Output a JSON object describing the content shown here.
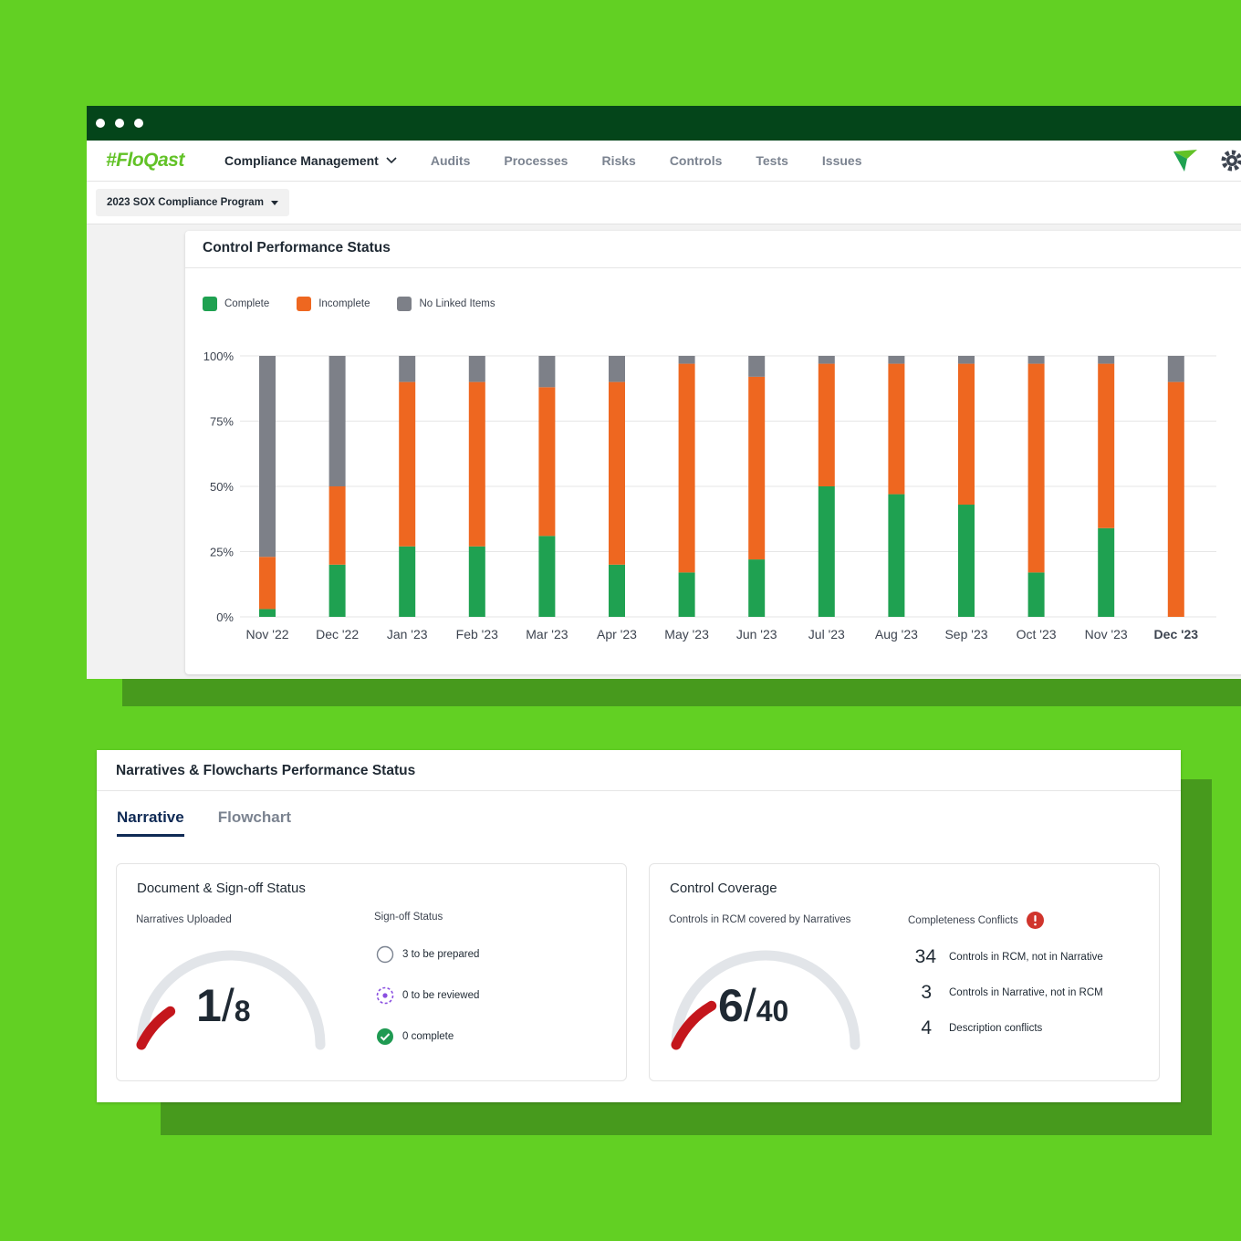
{
  "app": {
    "brand": "#FloQast",
    "nav": [
      {
        "label": "Compliance Management",
        "active": true
      },
      {
        "label": "Audits"
      },
      {
        "label": "Processes"
      },
      {
        "label": "Risks"
      },
      {
        "label": "Controls"
      },
      {
        "label": "Tests"
      },
      {
        "label": "Issues"
      }
    ],
    "program_selector": "2023 SOX Compliance Program",
    "icons": [
      "flag-icon",
      "gear-icon",
      "chevron-down-icon",
      "caret-down-icon"
    ]
  },
  "performance_panel": {
    "title": "Control Performance Status"
  },
  "chart_data": {
    "type": "bar",
    "stacked": true,
    "categories": [
      "Nov '22",
      "Dec '22",
      "Jan '23",
      "Feb '23",
      "Mar '23",
      "Apr '23",
      "May '23",
      "Jun '23",
      "Jul '23",
      "Aug '23",
      "Sep '23",
      "Oct '23",
      "Nov '23",
      "Dec '23"
    ],
    "series": [
      {
        "name": "Complete",
        "color": "#1fa151",
        "values": [
          3,
          20,
          27,
          27,
          31,
          20,
          17,
          22,
          50,
          47,
          43,
          17,
          34,
          0
        ]
      },
      {
        "name": "Incomplete",
        "color": "#ee6720",
        "values": [
          20,
          30,
          63,
          63,
          57,
          70,
          80,
          70,
          47,
          50,
          54,
          80,
          63,
          90
        ]
      },
      {
        "name": "No Linked Items",
        "color": "#7d8088",
        "values": [
          77,
          50,
          10,
          10,
          12,
          10,
          3,
          8,
          3,
          3,
          3,
          3,
          3,
          10
        ]
      }
    ],
    "yticks": [
      "0%",
      "25%",
      "50%",
      "75%",
      "100%"
    ],
    "ylim": [
      0,
      100
    ],
    "grid": true,
    "legend": "top-left",
    "bold_category": "Dec '23"
  },
  "narratives": {
    "title": "Narratives & Flowcharts Performance Status",
    "tabs": [
      {
        "label": "Narrative",
        "active": true
      },
      {
        "label": "Flowchart"
      }
    ],
    "document": {
      "title": "Document & Sign-off Status",
      "uploaded_label": "Narratives Uploaded",
      "uploaded": "1",
      "total": "8",
      "progress": 0.125,
      "signoff_label": "Sign-off Status",
      "signoff": [
        {
          "icon": "empty-circle-icon",
          "text": "3 to be prepared"
        },
        {
          "icon": "dashed-circle-icon",
          "text": "0 to be reviewed"
        },
        {
          "icon": "check-circle-icon",
          "text": "0 complete"
        }
      ]
    },
    "coverage": {
      "title": "Control Coverage",
      "covered_label": "Controls in RCM covered by Narratives",
      "covered": "6",
      "total": "40",
      "progress": 0.15,
      "conflicts_label": "Completeness Conflicts",
      "conflicts": [
        {
          "count": "34",
          "text": "Controls in RCM, not in Narrative"
        },
        {
          "count": "3",
          "text": "Controls in Narrative, not in RCM"
        },
        {
          "count": "4",
          "text": "Description conflicts"
        }
      ]
    }
  },
  "colors": {
    "background": "#62d023",
    "titlebar": "#04451a",
    "accent_navy": "#0f2a55",
    "gauge_fill": "#c4161c",
    "gauge_track": "#e2e5e9"
  }
}
